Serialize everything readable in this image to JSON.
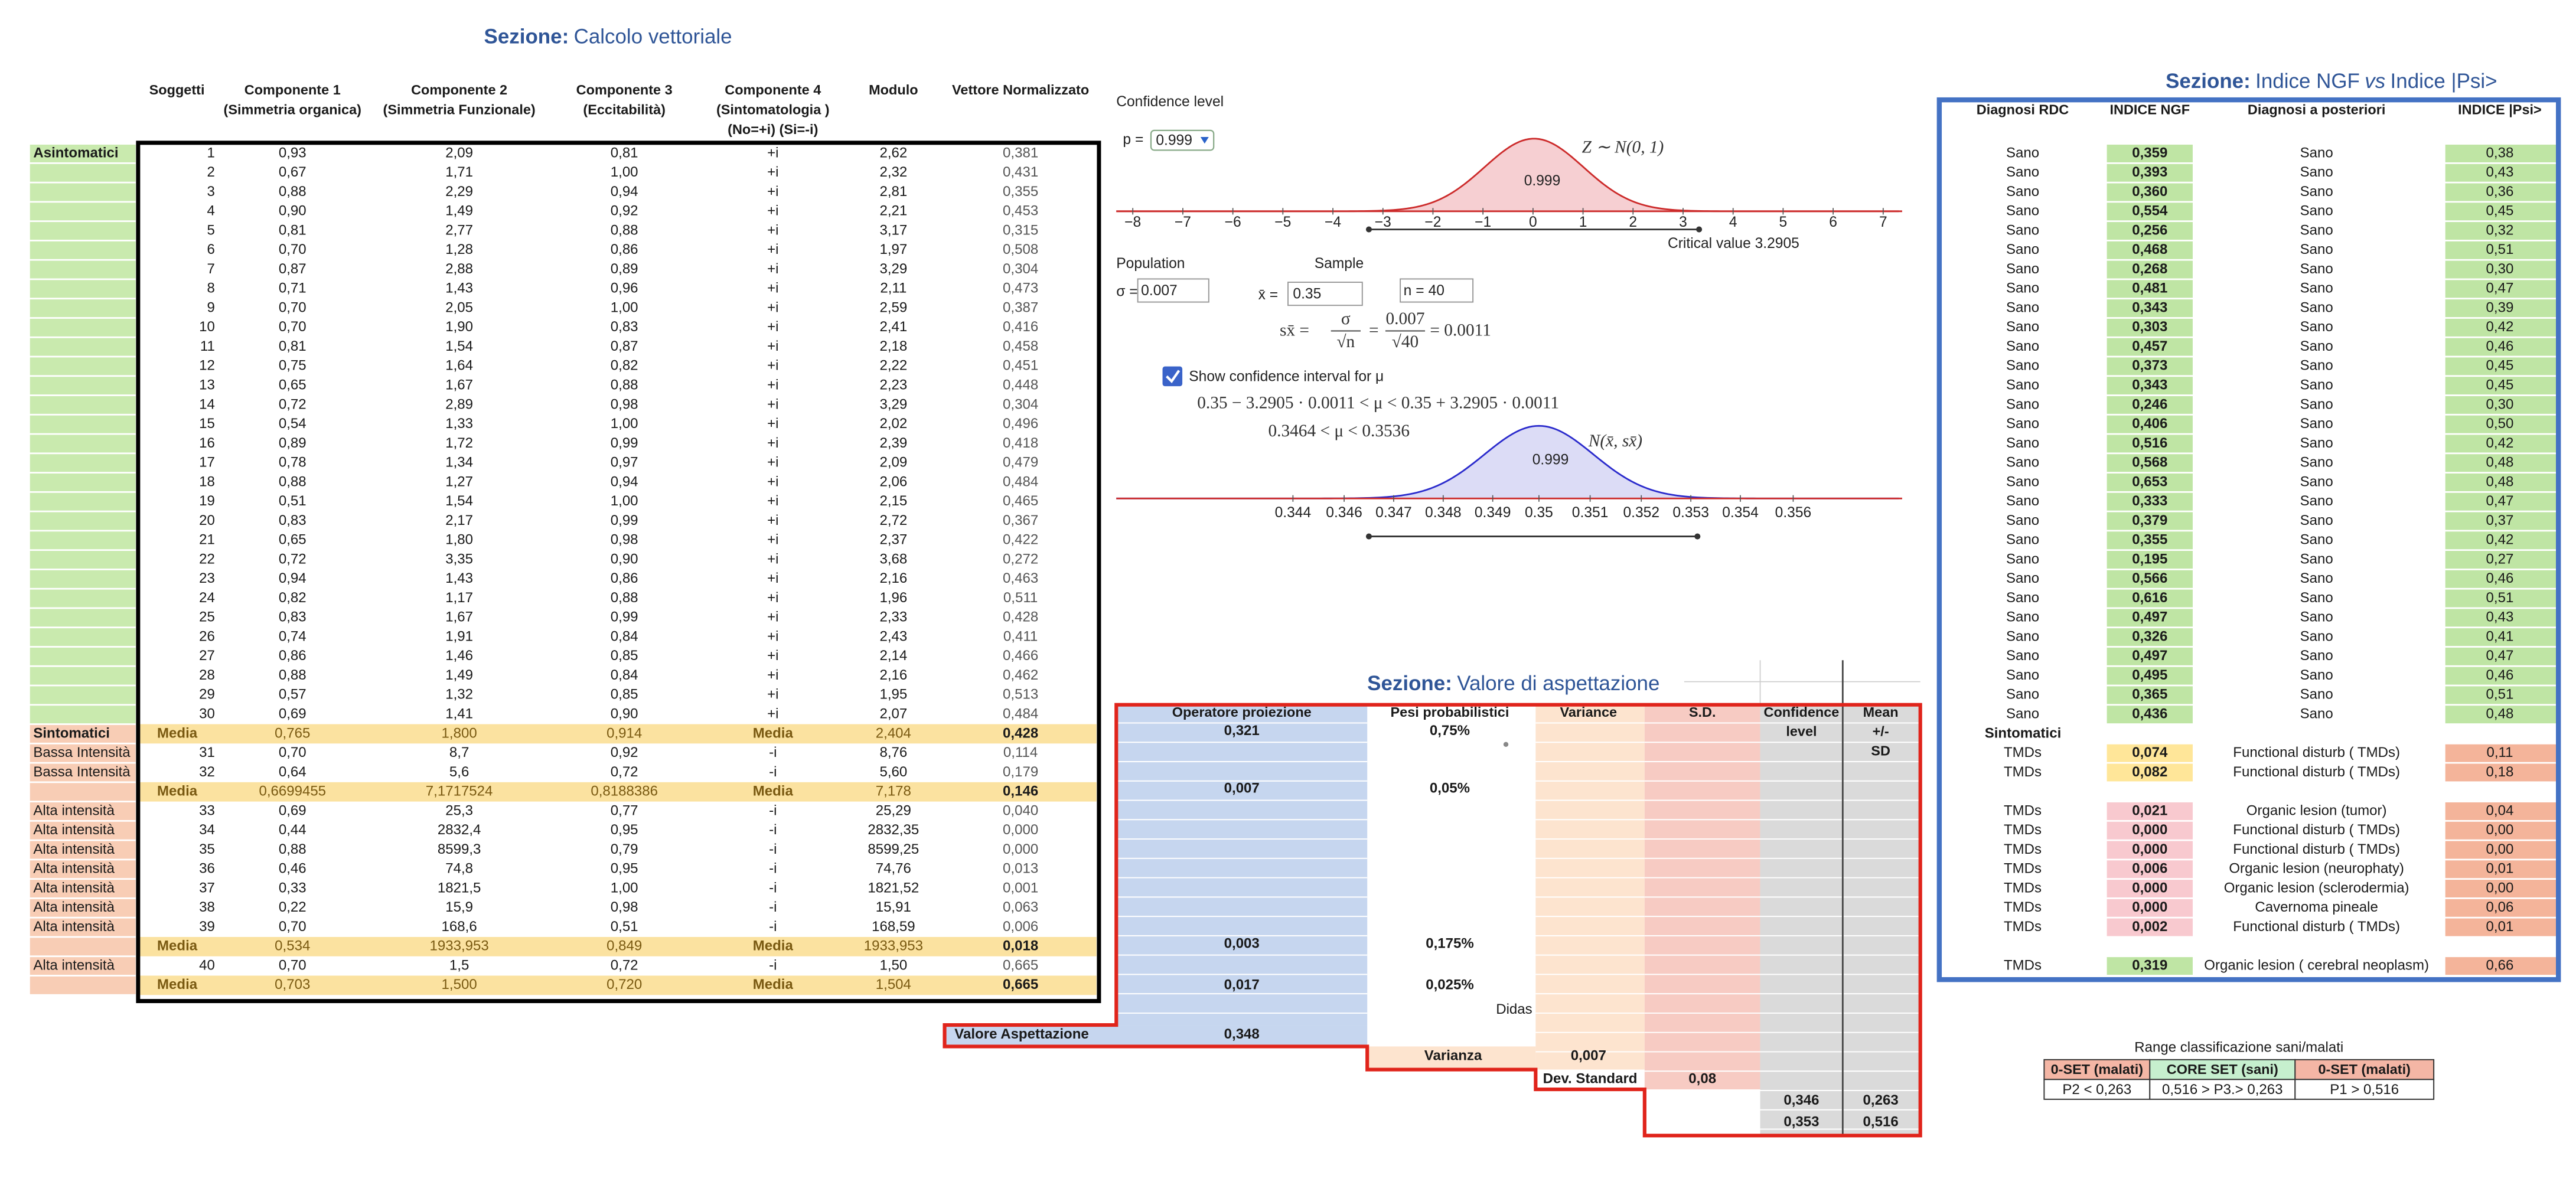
{
  "calcolo": {
    "title_label": "Sezione:",
    "title": "Calcolo vettoriale",
    "headers": [
      [
        "Soggetti"
      ],
      [
        "Componente 1",
        "(Simmetria organica)"
      ],
      [
        "Componente 2",
        "(Simmetria Funzionale)"
      ],
      [
        "Componente 3",
        "(Eccitabilità)"
      ],
      [
        "Componente 4",
        "(Sintomatologia )",
        "(No=+i) (Si=-i)"
      ],
      [
        "Modulo"
      ],
      [
        "Vettore Normalizzato"
      ]
    ],
    "rows": [
      {
        "label": "Asintomatici",
        "cells": [
          "1",
          "0,93",
          "2,09",
          "0,81",
          "+i",
          "2,62",
          "0,381"
        ]
      },
      {
        "cells": [
          "2",
          "0,67",
          "1,71",
          "1,00",
          "+i",
          "2,32",
          "0,431"
        ]
      },
      {
        "cells": [
          "3",
          "0,88",
          "2,29",
          "0,94",
          "+i",
          "2,81",
          "0,355"
        ]
      },
      {
        "cells": [
          "4",
          "0,90",
          "1,49",
          "0,92",
          "+i",
          "2,21",
          "0,453"
        ]
      },
      {
        "cells": [
          "5",
          "0,81",
          "2,77",
          "0,88",
          "+i",
          "3,17",
          "0,315"
        ]
      },
      {
        "cells": [
          "6",
          "0,70",
          "1,28",
          "0,86",
          "+i",
          "1,97",
          "0,508"
        ]
      },
      {
        "cells": [
          "7",
          "0,87",
          "2,88",
          "0,89",
          "+i",
          "3,29",
          "0,304"
        ]
      },
      {
        "cells": [
          "8",
          "0,71",
          "1,43",
          "0,96",
          "+i",
          "2,11",
          "0,473"
        ]
      },
      {
        "cells": [
          "9",
          "0,70",
          "2,05",
          "1,00",
          "+i",
          "2,59",
          "0,387"
        ]
      },
      {
        "cells": [
          "10",
          "0,70",
          "1,90",
          "0,83",
          "+i",
          "2,41",
          "0,416"
        ]
      },
      {
        "cells": [
          "11",
          "0,81",
          "1,54",
          "0,87",
          "+i",
          "2,18",
          "0,458"
        ]
      },
      {
        "cells": [
          "12",
          "0,75",
          "1,64",
          "0,82",
          "+i",
          "2,22",
          "0,451"
        ]
      },
      {
        "cells": [
          "13",
          "0,65",
          "1,67",
          "0,88",
          "+i",
          "2,23",
          "0,448"
        ]
      },
      {
        "cells": [
          "14",
          "0,72",
          "2,89",
          "0,98",
          "+i",
          "3,29",
          "0,304"
        ]
      },
      {
        "cells": [
          "15",
          "0,54",
          "1,33",
          "1,00",
          "+i",
          "2,02",
          "0,496"
        ]
      },
      {
        "cells": [
          "16",
          "0,89",
          "1,72",
          "0,99",
          "+i",
          "2,39",
          "0,418"
        ]
      },
      {
        "cells": [
          "17",
          "0,78",
          "1,34",
          "0,97",
          "+i",
          "2,09",
          "0,479"
        ]
      },
      {
        "cells": [
          "18",
          "0,88",
          "1,27",
          "0,94",
          "+i",
          "2,06",
          "0,484"
        ]
      },
      {
        "cells": [
          "19",
          "0,51",
          "1,54",
          "1,00",
          "+i",
          "2,15",
          "0,465"
        ]
      },
      {
        "cells": [
          "20",
          "0,83",
          "2,17",
          "0,99",
          "+i",
          "2,72",
          "0,367"
        ]
      },
      {
        "cells": [
          "21",
          "0,65",
          "1,80",
          "0,98",
          "+i",
          "2,37",
          "0,422"
        ]
      },
      {
        "cells": [
          "22",
          "0,72",
          "3,35",
          "0,90",
          "+i",
          "3,68",
          "0,272"
        ]
      },
      {
        "cells": [
          "23",
          "0,94",
          "1,43",
          "0,86",
          "+i",
          "2,16",
          "0,463"
        ]
      },
      {
        "cells": [
          "24",
          "0,82",
          "1,17",
          "0,88",
          "+i",
          "1,96",
          "0,511"
        ]
      },
      {
        "cells": [
          "25",
          "0,83",
          "1,67",
          "0,99",
          "+i",
          "2,33",
          "0,428"
        ]
      },
      {
        "cells": [
          "26",
          "0,74",
          "1,91",
          "0,84",
          "+i",
          "2,43",
          "0,411"
        ]
      },
      {
        "cells": [
          "27",
          "0,86",
          "1,46",
          "0,85",
          "+i",
          "2,14",
          "0,466"
        ]
      },
      {
        "cells": [
          "28",
          "0,88",
          "1,49",
          "0,84",
          "+i",
          "2,16",
          "0,462"
        ]
      },
      {
        "cells": [
          "29",
          "0,57",
          "1,32",
          "0,85",
          "+i",
          "1,95",
          "0,513"
        ]
      },
      {
        "cells": [
          "30",
          "0,69",
          "1,41",
          "0,90",
          "+i",
          "2,07",
          "0,484"
        ]
      },
      {
        "label": "Sintomatici",
        "cells": [
          "Media",
          "0,765",
          "1,800",
          "0,914",
          "Media",
          "2,404",
          "0,428"
        ]
      },
      {
        "label": "Bassa Intensità",
        "cells": [
          "31",
          "0,70",
          "8,7",
          "0,92",
          "-i",
          "8,76",
          "0,114"
        ]
      },
      {
        "label": "Bassa Intensità",
        "cells": [
          "32",
          "0,64",
          "5,6",
          "0,72",
          "-i",
          "5,60",
          "0,179"
        ]
      },
      {
        "cells": [
          "Media",
          "0,6699455",
          "7,1717524",
          "0,8188386",
          "Media",
          "7,178",
          "0,146"
        ]
      },
      {
        "label": "Alta intensità",
        "cells": [
          "33",
          "0,69",
          "25,3",
          "0,77",
          "-i",
          "25,29",
          "0,040"
        ]
      },
      {
        "label": "Alta intensità",
        "cells": [
          "34",
          "0,44",
          "2832,4",
          "0,95",
          "-i",
          "2832,35",
          "0,000"
        ]
      },
      {
        "label": "Alta intensità",
        "cells": [
          "35",
          "0,88",
          "8599,3",
          "0,79",
          "-i",
          "8599,25",
          "0,000"
        ]
      },
      {
        "label": "Alta intensità",
        "cells": [
          "36",
          "0,46",
          "74,8",
          "0,95",
          "-i",
          "74,76",
          "0,013"
        ]
      },
      {
        "label": "Alta intensità",
        "cells": [
          "37",
          "0,33",
          "1821,5",
          "1,00",
          "-i",
          "1821,52",
          "0,001"
        ]
      },
      {
        "label": "Alta intensità",
        "cells": [
          "38",
          "0,22",
          "15,9",
          "0,98",
          "-i",
          "15,91",
          "0,063"
        ]
      },
      {
        "label": "Alta intensità",
        "cells": [
          "39",
          "0,70",
          "168,6",
          "0,51",
          "-i",
          "168,59",
          "0,006"
        ]
      },
      {
        "cells": [
          "Media",
          "0,534",
          "1933,953",
          "0,849",
          "Media",
          "1933,953",
          "0,018"
        ]
      },
      {
        "label": "Alta intensità",
        "cells": [
          "40",
          "0,70",
          "1,5",
          "0,72",
          "-i",
          "1,50",
          "0,665"
        ]
      },
      {
        "cells": [
          "Media",
          "0,703",
          "1,500",
          "0,720",
          "Media",
          "1,504",
          "0,665"
        ]
      }
    ]
  },
  "confidence": {
    "label": "Confidence level",
    "p_label": "p =",
    "p_value": "0.999",
    "z_ticks": [
      "−8",
      "−7",
      "−6",
      "−5",
      "−4",
      "−3",
      "−2",
      "−1",
      "0",
      "1",
      "2",
      "3",
      "4",
      "5",
      "6",
      "7"
    ],
    "z_label": "Z ∼ N(0, 1)",
    "z_area": "0.999",
    "critical": "Critical value 3.2905",
    "population": "Population",
    "sample": "Sample",
    "sigma_label": "σ =",
    "sigma": "0.007",
    "xbar_label": "x̄ =",
    "xbar": "0.35",
    "n_label": "n =",
    "n": "40",
    "formula_lhs": "sx̄ =",
    "formula_sigma": "σ",
    "formula_sqrt_n": "√n",
    "formula_eq": "=",
    "formula_num": "0.007",
    "formula_den": "√40",
    "formula_result": "= 0.0011",
    "checkbox": "Show confidence interval for μ",
    "interval": "0.35 − 3.2905 · 0.0011 < μ < 0.35 + 3.2905 · 0.0011",
    "interval_result": "0.3464 < μ < 0.3536",
    "ci_label": "N(x̄, sx̄)",
    "ci_area": "0.999",
    "ci_ticks": [
      "0.344",
      "0.346",
      "0.347",
      "0.348",
      "0.349",
      "0.35",
      "0.351",
      "0.352",
      "0.353",
      "0.354",
      "0.356"
    ]
  },
  "aspettazione": {
    "title_label": "Sezione:",
    "title": "Valore di aspettazione",
    "headers": [
      [
        "Operatore proiezione"
      ],
      [
        "Pesi probabilistici"
      ],
      [
        "Variance"
      ],
      [
        "S.D."
      ],
      [
        "Confidence",
        "level"
      ],
      [
        "Mean",
        "+/-",
        "SD"
      ]
    ],
    "rows": [
      {
        "operatore": "0,321",
        "peso": "0,75%"
      },
      {
        "operatore": "0,007",
        "peso": "0,05%"
      },
      {
        "operatore": "0,003",
        "peso": "0,175%"
      },
      {
        "operatore": "0,017",
        "peso": "0,025%"
      }
    ],
    "fragment": "Didas",
    "valore_label": "Valore Aspettazione",
    "valore": "0,348",
    "varianza_label": "Varianza",
    "varianza": "0,007",
    "dev_label": "Dev. Standard",
    "dev": "0,08",
    "confidence": [
      [
        "0,346",
        "0,263"
      ],
      [
        "0,353",
        "0,516"
      ]
    ]
  },
  "indice": {
    "title_label": "Sezione:",
    "title_a": "Indice NGF",
    "title_vs": "vs",
    "title_b": "Indice |Psi>",
    "headers": [
      "Diagnosi RDC",
      "INDICE NGF",
      "Diagnosi a posteriori",
      "INDICE |Psi>"
    ],
    "sano_rows": [
      [
        "Sano",
        "0,359",
        "Sano",
        "0,38"
      ],
      [
        "Sano",
        "0,393",
        "Sano",
        "0,43"
      ],
      [
        "Sano",
        "0,360",
        "Sano",
        "0,36"
      ],
      [
        "Sano",
        "0,554",
        "Sano",
        "0,45"
      ],
      [
        "Sano",
        "0,256",
        "Sano",
        "0,32"
      ],
      [
        "Sano",
        "0,468",
        "Sano",
        "0,51"
      ],
      [
        "Sano",
        "0,268",
        "Sano",
        "0,30"
      ],
      [
        "Sano",
        "0,481",
        "Sano",
        "0,47"
      ],
      [
        "Sano",
        "0,343",
        "Sano",
        "0,39"
      ],
      [
        "Sano",
        "0,303",
        "Sano",
        "0,42"
      ],
      [
        "Sano",
        "0,457",
        "Sano",
        "0,46"
      ],
      [
        "Sano",
        "0,373",
        "Sano",
        "0,45"
      ],
      [
        "Sano",
        "0,343",
        "Sano",
        "0,45"
      ],
      [
        "Sano",
        "0,246",
        "Sano",
        "0,30"
      ],
      [
        "Sano",
        "0,406",
        "Sano",
        "0,50"
      ],
      [
        "Sano",
        "0,516",
        "Sano",
        "0,42"
      ],
      [
        "Sano",
        "0,568",
        "Sano",
        "0,48"
      ],
      [
        "Sano",
        "0,653",
        "Sano",
        "0,48"
      ],
      [
        "Sano",
        "0,333",
        "Sano",
        "0,47"
      ],
      [
        "Sano",
        "0,379",
        "Sano",
        "0,37"
      ],
      [
        "Sano",
        "0,355",
        "Sano",
        "0,42"
      ],
      [
        "Sano",
        "0,195",
        "Sano",
        "0,27"
      ],
      [
        "Sano",
        "0,566",
        "Sano",
        "0,46"
      ],
      [
        "Sano",
        "0,616",
        "Sano",
        "0,51"
      ],
      [
        "Sano",
        "0,497",
        "Sano",
        "0,43"
      ],
      [
        "Sano",
        "0,326",
        "Sano",
        "0,41"
      ],
      [
        "Sano",
        "0,497",
        "Sano",
        "0,47"
      ],
      [
        "Sano",
        "0,495",
        "Sano",
        "0,46"
      ],
      [
        "Sano",
        "0,365",
        "Sano",
        "0,51"
      ],
      [
        "Sano",
        "0,436",
        "Sano",
        "0,48"
      ]
    ],
    "sintomatici": "Sintomatici",
    "tmd_rows_1": [
      [
        "TMDs",
        "0,074",
        "Functional disturb ( TMDs)",
        "0,11"
      ],
      [
        "TMDs",
        "0,082",
        "Functional disturb ( TMDs)",
        "0,18"
      ]
    ],
    "tmd_rows_2": [
      [
        "TMDs",
        "0,021",
        "Organic lesion (tumor)",
        "0,04"
      ],
      [
        "TMDs",
        "0,000",
        "Functional disturb ( TMDs)",
        "0,00"
      ],
      [
        "TMDs",
        "0,000",
        "Functional disturb ( TMDs)",
        "0,00"
      ],
      [
        "TMDs",
        "0,006",
        "Organic lesion (neurophaty)",
        "0,01"
      ],
      [
        "TMDs",
        "0,000",
        "Organic lesion (sclerodermia)",
        "0,00"
      ],
      [
        "TMDs",
        "0,000",
        "Cavernoma pineale",
        "0,06"
      ],
      [
        "TMDs",
        "0,002",
        "Functional disturb ( TMDs)",
        "0,01"
      ]
    ],
    "tmd_rows_3": [
      [
        "TMDs",
        "0,319",
        "Organic lesion ( cerebral neoplasm)",
        "0,66"
      ]
    ]
  },
  "range": {
    "title": "Range classificazione sani/malati",
    "headers": [
      "0-SET (malati)",
      "CORE SET (sani)",
      "0-SET (malati)"
    ],
    "cells": [
      "P2 < 0,263",
      "0,516 > P3.> 0,263",
      "P1 > 0,516"
    ]
  }
}
